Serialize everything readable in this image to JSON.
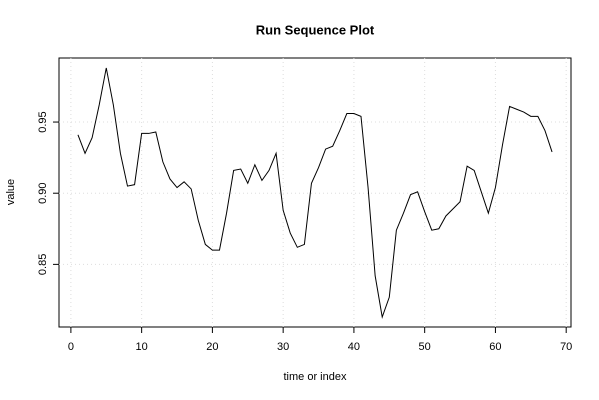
{
  "chart_data": {
    "type": "line",
    "title": "Run Sequence Plot",
    "x_label": "time or index",
    "y_label": "value",
    "x": [
      1,
      2,
      3,
      4,
      5,
      6,
      7,
      8,
      9,
      10,
      11,
      12,
      13,
      14,
      15,
      16,
      17,
      18,
      19,
      20,
      21,
      22,
      23,
      24,
      25,
      26,
      27,
      28,
      29,
      30,
      31,
      32,
      33,
      34,
      35,
      36,
      37,
      38,
      39,
      40,
      41,
      42,
      43,
      44,
      45,
      46,
      47,
      48,
      49,
      50,
      51,
      52,
      53,
      54,
      55,
      56,
      57,
      58,
      59,
      60,
      61,
      62,
      63,
      64,
      65,
      66,
      67,
      68
    ],
    "series": [
      {
        "name": "value",
        "color": "#000000",
        "values": [
          0.941,
          0.928,
          0.939,
          0.962,
          0.988,
          0.962,
          0.928,
          0.905,
          0.906,
          0.942,
          0.942,
          0.943,
          0.922,
          0.91,
          0.904,
          0.908,
          0.903,
          0.881,
          0.864,
          0.86,
          0.86,
          0.886,
          0.916,
          0.917,
          0.907,
          0.92,
          0.909,
          0.916,
          0.928,
          0.888,
          0.872,
          0.862,
          0.864,
          0.907,
          0.918,
          0.931,
          0.933,
          0.944,
          0.956,
          0.956,
          0.954,
          0.904,
          0.842,
          0.813,
          0.827,
          0.874,
          0.886,
          0.899,
          0.901,
          0.887,
          0.874,
          0.875,
          0.884,
          0.889,
          0.894,
          0.919,
          0.916,
          0.901,
          0.886,
          0.904,
          0.934,
          0.961,
          0.959,
          0.957,
          0.954,
          0.954,
          0.944,
          0.929
        ]
      }
    ],
    "xlim": [
      -1.68,
      70.68
    ],
    "xticks": [
      0,
      10,
      20,
      30,
      40,
      50,
      60,
      70
    ],
    "ylim": [
      0.806,
      0.995
    ],
    "yticks": [
      0.85,
      {
        "value": 0.9,
        "label": "0.90"
      },
      0.95
    ],
    "grid": true
  }
}
